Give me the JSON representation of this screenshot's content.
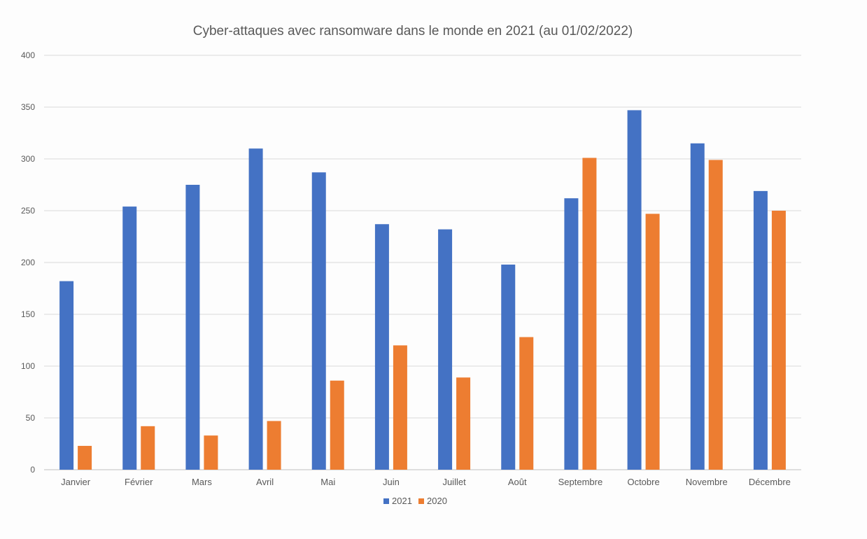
{
  "chart_data": {
    "type": "bar",
    "title": "Cyber-attaques avec ransomware dans le monde en 2021 (au 01/02/2022)",
    "xlabel": "",
    "ylabel": "",
    "ylim": [
      0,
      400
    ],
    "yticks": [
      0,
      50,
      100,
      150,
      200,
      250,
      300,
      350,
      400
    ],
    "grid": true,
    "legend_position": "bottom",
    "categories": [
      "Janvier",
      "Février",
      "Mars",
      "Avril",
      "Mai",
      "Juin",
      "Juillet",
      "Août",
      "Septembre",
      "Octobre",
      "Novembre",
      "Décembre"
    ],
    "series": [
      {
        "name": "2021",
        "color": "#4472C4",
        "values": [
          182,
          254,
          275,
          310,
          287,
          237,
          232,
          198,
          262,
          347,
          315,
          269
        ]
      },
      {
        "name": "2020",
        "color": "#ED7D31",
        "values": [
          23,
          42,
          33,
          47,
          86,
          120,
          89,
          128,
          301,
          247,
          299,
          250
        ]
      }
    ]
  }
}
